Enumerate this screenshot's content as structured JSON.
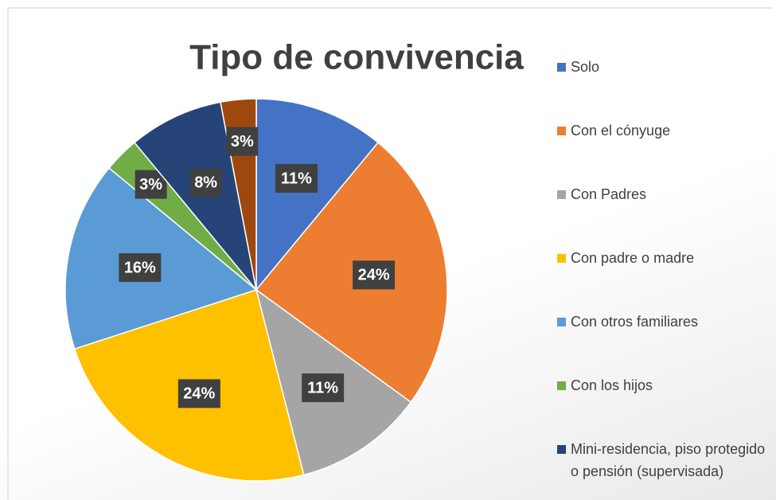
{
  "chart_data": {
    "type": "pie",
    "title": "Tipo de convivencia",
    "categories": [
      "Solo",
      "Con el cónyuge",
      "Con Padres",
      "Con padre o madre",
      "Con otros familiares",
      "Con los hijos",
      "Mini-residencia, piso protegido o pensión (supervisada)",
      null
    ],
    "values": [
      11,
      24,
      11,
      24,
      16,
      3,
      8,
      3
    ],
    "value_labels": [
      "11%",
      "24%",
      "11%",
      "24%",
      "16%",
      "3%",
      "8%",
      "3%"
    ],
    "colors": [
      "#4472c4",
      "#ed7d31",
      "#a5a5a5",
      "#ffc000",
      "#5b9bd5",
      "#70ad47",
      "#264478",
      "#9e480e"
    ],
    "legend": "right"
  }
}
